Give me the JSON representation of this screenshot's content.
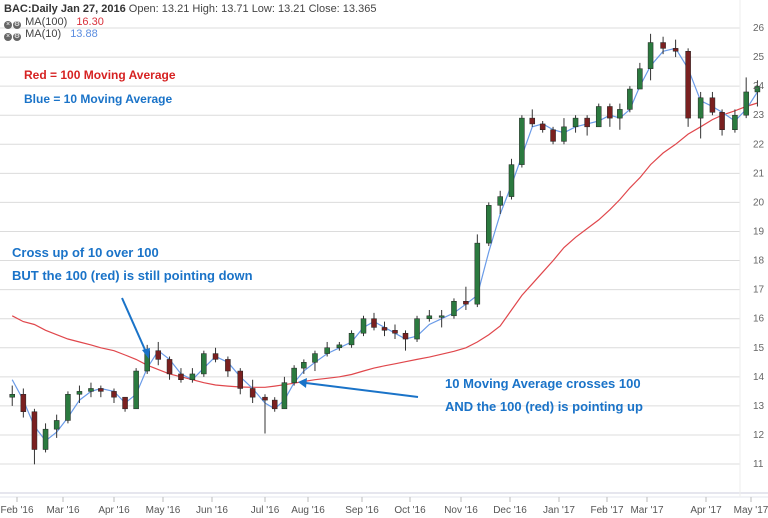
{
  "header": {
    "ticker": "BAC:Daily",
    "date": "Jan 27, 2016",
    "ohlc_text": "Open: 13.21 High: 13.71 Low: 13.21 Close: 13.365",
    "indicators": [
      {
        "label": "MA(100)",
        "value": "16.30",
        "color": "#d9303a"
      },
      {
        "label": "MA(10)",
        "value": "13.88",
        "color": "#5b8de0"
      }
    ]
  },
  "legend_notes": {
    "red": "Red = 100 Moving Average",
    "blue": "Blue = 10 Moving Average"
  },
  "annotations": {
    "first": [
      "Cross up of 10 over 100",
      "BUT the 100 (red) is still pointing down"
    ],
    "second": [
      "10 Moving Average crosses 100",
      "AND the 100 (red) is pointing up"
    ]
  },
  "colors": {
    "ma100": "#e0474c",
    "ma10": "#6a9be8",
    "annotation": "#1a73c8",
    "legend_red": "#d62222",
    "up": "#2b7a3f",
    "down": "#7a2020"
  },
  "chart_data": {
    "type": "candlestick",
    "ylim": [
      11,
      26
    ],
    "yticks": [
      11,
      12,
      13,
      14,
      15,
      16,
      17,
      18,
      19,
      20,
      21,
      22,
      23,
      24,
      25,
      26
    ],
    "xticks": [
      "Feb '16",
      "Mar '16",
      "Apr '16",
      "May '16",
      "Jun '16",
      "Jul '16",
      "Aug '16",
      "Sep '16",
      "Oct '16",
      "Nov '16",
      "Dec '16",
      "Jan '17",
      "Feb '17",
      "Mar '17",
      "Apr '17",
      "May '17"
    ],
    "grid": true,
    "dates": [
      "2016-01-29",
      "2016-02-05",
      "2016-02-12",
      "2016-02-19",
      "2016-02-26",
      "2016-03-04",
      "2016-03-11",
      "2016-03-18",
      "2016-03-24",
      "2016-04-01",
      "2016-04-08",
      "2016-04-15",
      "2016-04-22",
      "2016-04-29",
      "2016-05-06",
      "2016-05-13",
      "2016-05-20",
      "2016-05-27",
      "2016-06-03",
      "2016-06-10",
      "2016-06-17",
      "2016-06-24",
      "2016-07-01",
      "2016-07-08",
      "2016-07-15",
      "2016-07-22",
      "2016-07-29",
      "2016-08-05",
      "2016-08-12",
      "2016-08-19",
      "2016-08-26",
      "2016-09-02",
      "2016-09-09",
      "2016-09-16",
      "2016-09-23",
      "2016-09-30",
      "2016-10-07",
      "2016-10-14",
      "2016-10-21",
      "2016-10-28",
      "2016-11-04",
      "2016-11-11",
      "2016-11-18",
      "2016-11-25",
      "2016-12-02",
      "2016-12-09",
      "2016-12-16",
      "2016-12-23",
      "2016-12-30",
      "2017-01-06",
      "2017-01-13",
      "2017-01-20",
      "2017-01-27",
      "2017-02-03",
      "2017-02-10",
      "2017-02-17",
      "2017-02-24",
      "2017-03-03",
      "2017-03-10",
      "2017-03-17",
      "2017-03-24",
      "2017-03-31",
      "2017-04-07",
      "2017-04-13",
      "2017-04-21",
      "2017-04-28",
      "2017-05-05"
    ],
    "ohlc": [
      [
        13.3,
        13.7,
        13.0,
        13.4
      ],
      [
        13.4,
        13.6,
        12.6,
        12.8
      ],
      [
        12.8,
        12.9,
        10.99,
        11.5
      ],
      [
        11.5,
        12.4,
        11.4,
        12.2
      ],
      [
        12.2,
        12.7,
        11.9,
        12.5
      ],
      [
        12.5,
        13.5,
        12.4,
        13.4
      ],
      [
        13.4,
        13.7,
        13.1,
        13.5
      ],
      [
        13.5,
        13.8,
        13.3,
        13.6
      ],
      [
        13.6,
        13.7,
        13.3,
        13.5
      ],
      [
        13.5,
        13.6,
        13.1,
        13.3
      ],
      [
        13.3,
        13.3,
        12.8,
        12.9
      ],
      [
        12.9,
        14.3,
        12.9,
        14.2
      ],
      [
        14.2,
        15.1,
        14.1,
        14.9
      ],
      [
        14.9,
        15.2,
        14.4,
        14.6
      ],
      [
        14.6,
        14.7,
        13.9,
        14.1
      ],
      [
        14.1,
        14.3,
        13.8,
        13.9
      ],
      [
        13.9,
        14.3,
        13.8,
        14.1
      ],
      [
        14.1,
        14.9,
        14.0,
        14.8
      ],
      [
        14.8,
        15.0,
        14.5,
        14.6
      ],
      [
        14.6,
        14.7,
        14.0,
        14.2
      ],
      [
        14.2,
        14.3,
        13.4,
        13.6
      ],
      [
        13.6,
        13.9,
        13.1,
        13.3
      ],
      [
        13.3,
        13.4,
        12.05,
        13.2
      ],
      [
        13.2,
        13.3,
        12.8,
        12.9
      ],
      [
        12.9,
        14.0,
        12.9,
        13.8
      ],
      [
        13.8,
        14.4,
        13.7,
        14.3
      ],
      [
        14.3,
        14.6,
        14.1,
        14.5
      ],
      [
        14.5,
        14.9,
        14.2,
        14.8
      ],
      [
        14.8,
        15.2,
        14.7,
        15.0
      ],
      [
        15.0,
        15.2,
        14.9,
        15.1
      ],
      [
        15.1,
        15.6,
        15.0,
        15.5
      ],
      [
        15.5,
        16.1,
        15.4,
        16.0
      ],
      [
        16.0,
        16.2,
        15.6,
        15.7
      ],
      [
        15.7,
        15.9,
        15.4,
        15.6
      ],
      [
        15.6,
        15.8,
        15.3,
        15.5
      ],
      [
        15.5,
        15.6,
        14.9,
        15.3
      ],
      [
        15.3,
        16.1,
        15.2,
        16.0
      ],
      [
        16.0,
        16.3,
        15.9,
        16.1
      ],
      [
        16.1,
        16.3,
        15.7,
        16.1
      ],
      [
        16.1,
        16.7,
        16.0,
        16.6
      ],
      [
        16.6,
        17.1,
        16.3,
        16.5
      ],
      [
        16.5,
        18.9,
        16.4,
        18.6
      ],
      [
        18.6,
        20.0,
        18.5,
        19.9
      ],
      [
        19.9,
        20.4,
        19.6,
        20.2
      ],
      [
        20.2,
        21.5,
        20.1,
        21.3
      ],
      [
        21.3,
        23.0,
        21.2,
        22.9
      ],
      [
        22.9,
        23.2,
        22.6,
        22.7
      ],
      [
        22.7,
        22.8,
        22.4,
        22.5
      ],
      [
        22.5,
        22.6,
        22.0,
        22.1
      ],
      [
        22.1,
        22.9,
        22.0,
        22.6
      ],
      [
        22.6,
        23.0,
        22.4,
        22.9
      ],
      [
        22.9,
        23.0,
        22.3,
        22.6
      ],
      [
        22.6,
        23.4,
        22.6,
        23.3
      ],
      [
        23.3,
        23.4,
        22.6,
        22.9
      ],
      [
        22.9,
        23.4,
        22.5,
        23.2
      ],
      [
        23.2,
        24.0,
        23.1,
        23.9
      ],
      [
        23.9,
        24.8,
        23.9,
        24.6
      ],
      [
        24.6,
        25.8,
        24.2,
        25.5
      ],
      [
        25.5,
        25.7,
        25.1,
        25.3
      ],
      [
        25.3,
        25.6,
        25.0,
        25.2
      ],
      [
        25.2,
        25.3,
        22.6,
        22.9
      ],
      [
        22.9,
        23.8,
        22.2,
        23.6
      ],
      [
        23.6,
        23.8,
        23.0,
        23.1
      ],
      [
        23.1,
        23.2,
        22.3,
        22.5
      ],
      [
        22.5,
        23.2,
        22.4,
        23.0
      ],
      [
        23.0,
        24.3,
        22.9,
        23.8
      ],
      [
        23.8,
        24.2,
        23.3,
        24.0
      ]
    ],
    "series": [
      {
        "name": "MA(100)",
        "values": [
          16.1,
          15.9,
          15.8,
          15.6,
          15.45,
          15.3,
          15.2,
          15.1,
          15.0,
          14.9,
          14.75,
          14.6,
          14.4,
          14.25,
          14.1,
          14.0,
          13.9,
          13.8,
          13.72,
          13.68,
          13.65,
          13.64,
          13.64,
          13.68,
          13.73,
          13.78,
          13.84,
          13.9,
          13.95,
          14.0,
          14.08,
          14.2,
          14.3,
          14.38,
          14.45,
          14.52,
          14.6,
          14.68,
          14.78,
          14.88,
          15.0,
          15.2,
          15.45,
          15.75,
          16.3,
          16.8,
          17.2,
          17.6,
          18.0,
          18.45,
          18.8,
          19.1,
          19.4,
          19.75,
          20.1,
          20.5,
          20.85,
          21.3,
          21.7,
          22.0,
          22.35,
          22.6,
          22.85,
          23.0,
          23.15,
          23.3,
          23.42
        ]
      },
      {
        "name": "MA(10)",
        "values": [
          13.9,
          13.2,
          12.3,
          11.8,
          12.1,
          12.6,
          13.2,
          13.5,
          13.6,
          13.5,
          13.1,
          13.4,
          14.3,
          14.9,
          14.6,
          14.1,
          13.9,
          14.3,
          14.7,
          14.5,
          14.0,
          13.6,
          13.1,
          12.9,
          13.2,
          13.8,
          14.2,
          14.5,
          14.8,
          15.0,
          15.2,
          15.7,
          15.9,
          15.7,
          15.5,
          15.3,
          15.4,
          15.8,
          16.0,
          16.2,
          16.5,
          16.8,
          18.3,
          19.6,
          20.6,
          21.6,
          22.6,
          22.7,
          22.5,
          22.4,
          22.6,
          22.7,
          22.8,
          23.0,
          22.9,
          23.2,
          24.0,
          24.7,
          25.2,
          25.3,
          24.6,
          23.5,
          23.3,
          23.1,
          22.8,
          23.2,
          23.8
        ]
      }
    ]
  }
}
